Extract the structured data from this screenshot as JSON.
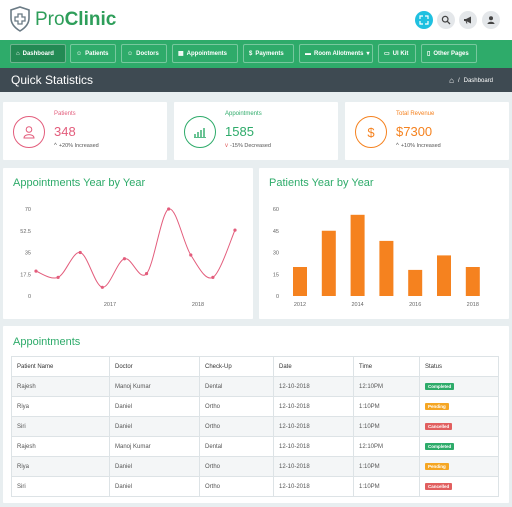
{
  "brand": {
    "name_prefix": "Pro",
    "name_suffix": "Clinic",
    "color": "#2e9e5a"
  },
  "topbar": {
    "icons": [
      {
        "name": "fullscreen-icon",
        "bg": "#1fc0e0"
      },
      {
        "name": "search-icon",
        "bg": "#e4e7ea"
      },
      {
        "name": "megaphone-icon",
        "bg": "#e4e7ea"
      },
      {
        "name": "user-icon",
        "bg": "#e4e7ea"
      }
    ]
  },
  "nav": {
    "items": [
      {
        "label": "Dashboard",
        "icon": "home-icon"
      },
      {
        "label": "Patients",
        "icon": "patient-icon"
      },
      {
        "label": "Doctors",
        "icon": "doctor-icon"
      },
      {
        "label": "Appointments",
        "icon": "calendar-icon"
      },
      {
        "label": "Payments",
        "icon": "dollar-icon"
      },
      {
        "label": "Room Allotments",
        "icon": "bed-icon"
      },
      {
        "label": "UI Kit",
        "icon": "window-icon"
      },
      {
        "label": "Other Pages",
        "icon": "file-icon"
      }
    ]
  },
  "header": {
    "title": "Quick Statistics",
    "breadcrumb": "Dashboard",
    "separator": "/"
  },
  "stats": [
    {
      "label": "Patients",
      "value": "348",
      "trend": "+20% Increased",
      "direction": "up",
      "color": "#e35d7c"
    },
    {
      "label": "Appointments",
      "value": "1585",
      "trend": "-15% Decreased",
      "direction": "down",
      "color": "#2eab6a"
    },
    {
      "label": "Total Revenue",
      "value": "$7300",
      "trend": "+10% Increased",
      "direction": "up",
      "color": "#f5821f"
    }
  ],
  "charts": {
    "appointments": {
      "title": "Appointments Year by Year"
    },
    "patients": {
      "title": "Patients Year by Year"
    }
  },
  "chart_data": [
    {
      "type": "line",
      "title": "Appointments Year by Year",
      "x_tick_labels": [
        "2017",
        "2018"
      ],
      "y_ticks": [
        0,
        17.5,
        35,
        52.5,
        70
      ],
      "ylim": [
        0,
        70
      ],
      "series": [
        {
          "values": [
            20,
            15,
            35,
            7,
            30,
            18,
            70,
            33,
            15,
            53
          ],
          "color": "#e35d7c"
        }
      ]
    },
    {
      "type": "bar",
      "title": "Patients Year by Year",
      "x_tick_labels": [
        "2012",
        "2014",
        "2016",
        "2018"
      ],
      "y_ticks": [
        0,
        15,
        30,
        45,
        60
      ],
      "ylim": [
        0,
        60
      ],
      "series": [
        {
          "values": [
            20,
            45,
            56,
            38,
            18,
            28,
            20
          ],
          "color": "#f5821f"
        }
      ]
    }
  ],
  "appointments_table": {
    "title": "Appointments",
    "headers": [
      "Patient Name",
      "Doctor",
      "Check-Up",
      "Date",
      "Time",
      "Status"
    ],
    "rows": [
      {
        "patient": "Rajesh",
        "doctor": "Manoj Kumar",
        "checkup": "Dental",
        "date": "12-10-2018",
        "time": "12:10PM",
        "status": "Completed",
        "status_type": "completed"
      },
      {
        "patient": "Riya",
        "doctor": "Daniel",
        "checkup": "Ortho",
        "date": "12-10-2018",
        "time": "1:10PM",
        "status": "Pending",
        "status_type": "pending"
      },
      {
        "patient": "Siri",
        "doctor": "Daniel",
        "checkup": "Ortho",
        "date": "12-10-2018",
        "time": "1:10PM",
        "status": "Cancelled",
        "status_type": "cancelled"
      },
      {
        "patient": "Rajesh",
        "doctor": "Manoj Kumar",
        "checkup": "Dental",
        "date": "12-10-2018",
        "time": "12:10PM",
        "status": "Completed",
        "status_type": "completed"
      },
      {
        "patient": "Riya",
        "doctor": "Daniel",
        "checkup": "Ortho",
        "date": "12-10-2018",
        "time": "1:10PM",
        "status": "Pending",
        "status_type": "pending"
      },
      {
        "patient": "Siri",
        "doctor": "Daniel",
        "checkup": "Ortho",
        "date": "12-10-2018",
        "time": "1:10PM",
        "status": "Cancelled",
        "status_type": "cancelled"
      }
    ]
  }
}
